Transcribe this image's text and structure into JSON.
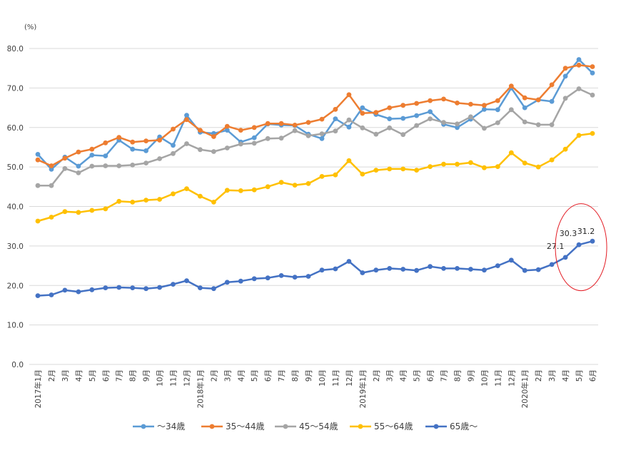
{
  "chart_data": {
    "type": "line",
    "title": "",
    "y_unit_label": "(%)",
    "ylabel": "",
    "xlabel": "",
    "ylim": [
      0,
      80
    ],
    "yticks": [
      "0.0",
      "10.0",
      "20.0",
      "30.0",
      "40.0",
      "50.0",
      "60.0",
      "70.0",
      "80.0"
    ],
    "grid": true,
    "legend_position": "bottom",
    "categories": [
      "2017年1月",
      "2月",
      "3月",
      "4月",
      "5月",
      "6月",
      "7月",
      "8月",
      "9月",
      "10月",
      "11月",
      "12月",
      "2018年1月",
      "2月",
      "3月",
      "4月",
      "5月",
      "6月",
      "7月",
      "8月",
      "9月",
      "10月",
      "11月",
      "12月",
      "2019年1月",
      "2月",
      "3月",
      "4月",
      "5月",
      "6月",
      "7月",
      "8月",
      "9月",
      "10月",
      "11月",
      "12月",
      "2020年1月",
      "2月",
      "3月",
      "4月",
      "5月",
      "6月"
    ],
    "series": [
      {
        "name": "〜34歳",
        "color": "#5b9bd5",
        "values": [
          53.2,
          49.4,
          52.5,
          50.2,
          53.0,
          52.8,
          56.8,
          54.5,
          54.1,
          57.6,
          55.5,
          63.1,
          58.8,
          58.5,
          59.3,
          56.3,
          57.4,
          60.9,
          60.6,
          60.5,
          58.3,
          57.2,
          62.2,
          60.1,
          65.0,
          63.3,
          62.2,
          62.3,
          63.0,
          64.0,
          60.8,
          60.0,
          62.1,
          64.6,
          64.5,
          70.0,
          65.0,
          67.0,
          66.6,
          73.0,
          77.2,
          73.8
        ]
      },
      {
        "name": "35〜44歳",
        "color": "#ed7d31",
        "values": [
          51.8,
          50.3,
          52.2,
          53.8,
          54.5,
          56.1,
          57.5,
          56.3,
          56.6,
          56.8,
          59.6,
          62.0,
          59.3,
          57.7,
          60.3,
          59.3,
          60.0,
          61.0,
          61.0,
          60.6,
          61.3,
          62.1,
          64.6,
          68.3,
          63.6,
          63.8,
          65.0,
          65.6,
          66.1,
          66.8,
          67.2,
          66.2,
          65.9,
          65.6,
          66.8,
          70.5,
          67.5,
          67.0,
          70.8,
          75.0,
          75.8,
          75.4
        ]
      },
      {
        "name": "45〜54歳",
        "color": "#a5a5a5",
        "values": [
          45.3,
          45.3,
          49.6,
          48.5,
          50.2,
          50.3,
          50.3,
          50.5,
          51.0,
          52.1,
          53.4,
          55.9,
          54.4,
          53.9,
          54.8,
          55.8,
          56.0,
          57.2,
          57.3,
          59.2,
          57.9,
          58.4,
          59.1,
          61.9,
          59.9,
          58.3,
          59.9,
          58.2,
          60.5,
          62.2,
          61.3,
          60.9,
          62.7,
          59.8,
          61.2,
          64.5,
          61.4,
          60.7,
          60.7,
          67.4,
          69.8,
          68.2
        ]
      },
      {
        "name": "55〜64歳",
        "color": "#ffc000",
        "values": [
          36.3,
          37.3,
          38.7,
          38.5,
          39.0,
          39.4,
          41.3,
          41.1,
          41.6,
          41.8,
          43.2,
          44.5,
          42.6,
          41.1,
          44.1,
          44.0,
          44.2,
          45.0,
          46.1,
          45.4,
          45.8,
          47.6,
          48.0,
          51.6,
          48.2,
          49.2,
          49.5,
          49.5,
          49.2,
          50.1,
          50.7,
          50.7,
          51.1,
          49.8,
          50.1,
          53.6,
          51.0,
          50.0,
          51.8,
          54.5,
          58.0,
          58.5
        ]
      },
      {
        "name": "65歳〜",
        "color": "#4472c4",
        "values": [
          17.4,
          17.6,
          18.8,
          18.4,
          18.9,
          19.4,
          19.5,
          19.4,
          19.2,
          19.5,
          20.3,
          21.2,
          19.4,
          19.2,
          20.8,
          21.1,
          21.7,
          21.9,
          22.5,
          22.1,
          22.3,
          23.9,
          24.2,
          26.1,
          23.2,
          23.9,
          24.3,
          24.1,
          23.8,
          24.8,
          24.3,
          24.3,
          24.1,
          23.9,
          25.0,
          26.4,
          23.8,
          24.0,
          25.3,
          27.1,
          30.3,
          31.2
        ]
      }
    ],
    "annotations": [
      {
        "series": "65歳〜",
        "category": "4月",
        "label": "27.1"
      },
      {
        "series": "65歳〜",
        "category": "5月",
        "label": "30.3"
      },
      {
        "series": "65歳〜",
        "category": "6月",
        "label": "31.2"
      }
    ],
    "highlight_color": "#e31b23"
  }
}
